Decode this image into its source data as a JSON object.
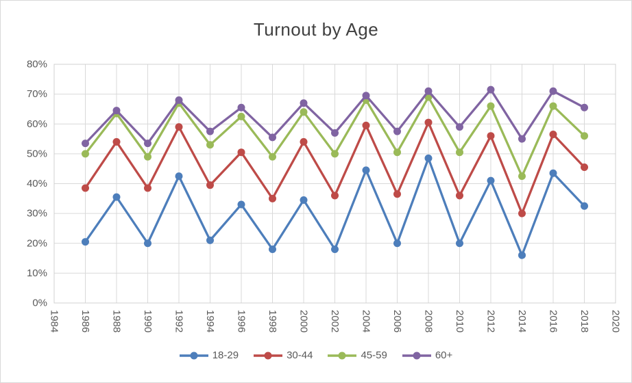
{
  "chart_data": {
    "type": "line",
    "title": "Turnout by Age",
    "x": [
      1986,
      1988,
      1990,
      1992,
      1994,
      1996,
      1998,
      2000,
      2002,
      2004,
      2006,
      2008,
      2010,
      2012,
      2014,
      2016,
      2018
    ],
    "x_axis": {
      "range": [
        1984,
        2020
      ],
      "tick_step": 2,
      "tick_labels": [
        "1984",
        "1986",
        "1988",
        "1990",
        "1992",
        "1994",
        "1996",
        "1998",
        "2000",
        "2002",
        "2004",
        "2006",
        "2008",
        "2010",
        "2012",
        "2014",
        "2016",
        "2018",
        "2020"
      ],
      "label_rotation_deg": 90
    },
    "y_axis": {
      "range": [
        0,
        80
      ],
      "tick_step": 10,
      "unit": "%",
      "tick_labels": [
        "0%",
        "10%",
        "20%",
        "30%",
        "40%",
        "50%",
        "60%",
        "70%",
        "80%"
      ]
    },
    "grid": true,
    "legend_position": "bottom",
    "series": [
      {
        "name": "18-29",
        "color": "#4D7EBB",
        "values": [
          20.5,
          35.5,
          20,
          42.5,
          21,
          33,
          18,
          34.5,
          18,
          44.5,
          20,
          48.5,
          20,
          41,
          16,
          43.5,
          32.5
        ]
      },
      {
        "name": "30-44",
        "color": "#BE4B48",
        "values": [
          38.5,
          54,
          38.5,
          59,
          39.5,
          50.5,
          35,
          54,
          36,
          59.5,
          36.5,
          60.5,
          36,
          56,
          30,
          56.5,
          45.5
        ]
      },
      {
        "name": "45-59",
        "color": "#9ABA58",
        "values": [
          50,
          63.5,
          49,
          67,
          53,
          62.5,
          49,
          64,
          50,
          68,
          50.5,
          69,
          50.5,
          66,
          42.5,
          66,
          56
        ]
      },
      {
        "name": "60+",
        "color": "#8064A2",
        "values": [
          53.5,
          64.5,
          53.5,
          68,
          57.5,
          65.5,
          55.5,
          67,
          57,
          69.5,
          57.5,
          71,
          59,
          71.5,
          55,
          71,
          65.5
        ]
      }
    ]
  },
  "styles": {
    "grid_color": "#D9D9D9",
    "plot_border_color": "#D0D0D0",
    "tick_label_color": "#595959",
    "title_color": "#404040",
    "background": "#FFFFFF",
    "chart_border_color": "#D9D9D9"
  }
}
